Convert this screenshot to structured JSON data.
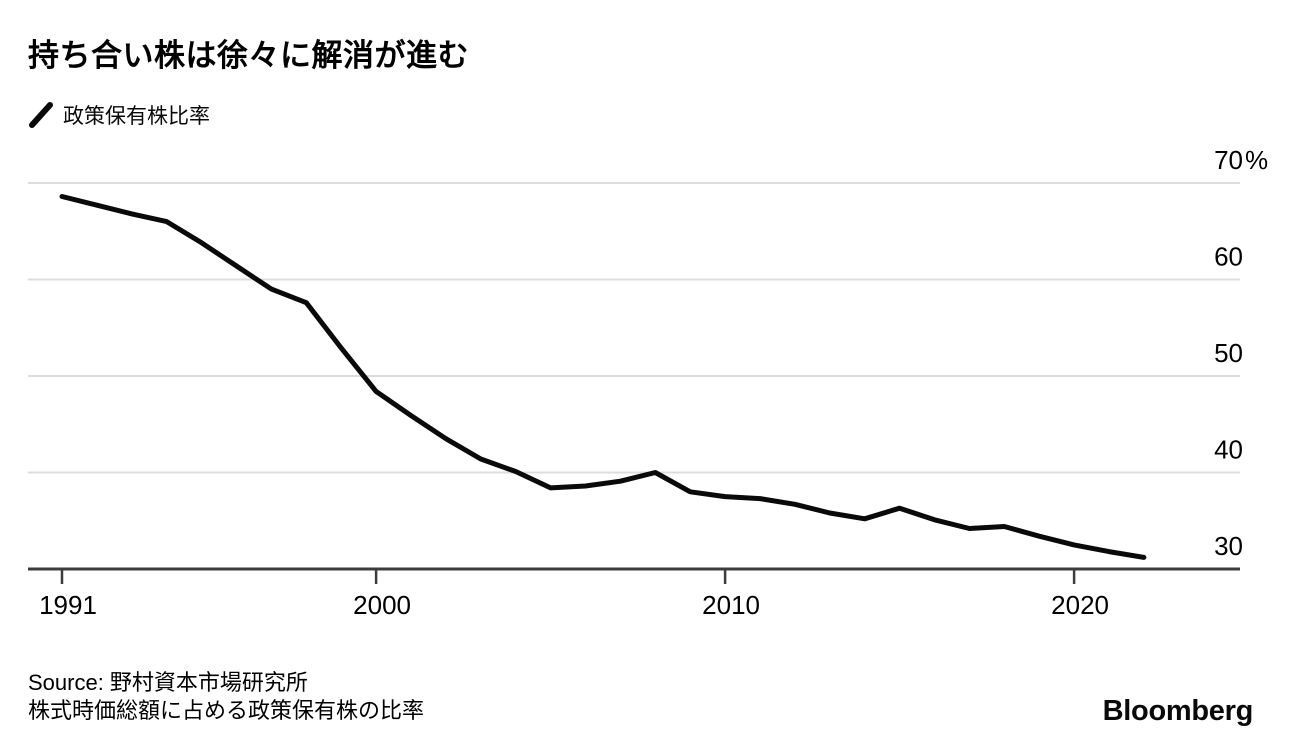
{
  "title": "持ち合い株は徐々に解消が進む",
  "legend": {
    "label": "政策保有株比率",
    "swatch_color": "#0a0a0a"
  },
  "source": {
    "line1": "Source: 野村資本市場研究所",
    "line2": "株式時価総額に占める政策保有株の比率"
  },
  "branding": "Bloomberg",
  "chart_data": {
    "type": "line",
    "title": "持ち合い株は徐々に解消が進む",
    "series_name": "政策保有株比率",
    "unit": "%",
    "x": [
      1991,
      1992,
      1993,
      1994,
      1995,
      1996,
      1997,
      1998,
      1999,
      2000,
      2001,
      2002,
      2003,
      2004,
      2005,
      2006,
      2007,
      2008,
      2009,
      2010,
      2011,
      2012,
      2013,
      2014,
      2015,
      2016,
      2017,
      2018,
      2019,
      2020,
      2021,
      2022
    ],
    "values": [
      68.6,
      67.7,
      66.8,
      66.0,
      63.8,
      61.4,
      59.0,
      57.6,
      52.9,
      48.4,
      45.9,
      43.5,
      41.4,
      40.1,
      38.4,
      38.6,
      39.1,
      40.0,
      38.0,
      37.5,
      37.3,
      36.7,
      35.8,
      35.2,
      36.3,
      35.1,
      34.2,
      34.4,
      33.4,
      32.5,
      31.8,
      31.2
    ],
    "ylim": [
      30,
      70
    ],
    "xlim": [
      1991,
      2022
    ],
    "y_ticks": [
      70,
      60,
      50,
      40,
      30
    ],
    "y_tick_labels": [
      "70%",
      "60",
      "50",
      "40",
      "30"
    ],
    "x_ticks": [
      1991,
      2000,
      2010,
      2020
    ],
    "x_tick_labels": [
      "1991",
      "2000",
      "2010",
      "2020"
    ],
    "grid": "horizontal",
    "legend_position": "top-left",
    "line_color": "#0a0a0a",
    "grid_color": "#dcdcdc",
    "axis_color": "#3c3c3c",
    "tick_label_color": "#000000"
  }
}
